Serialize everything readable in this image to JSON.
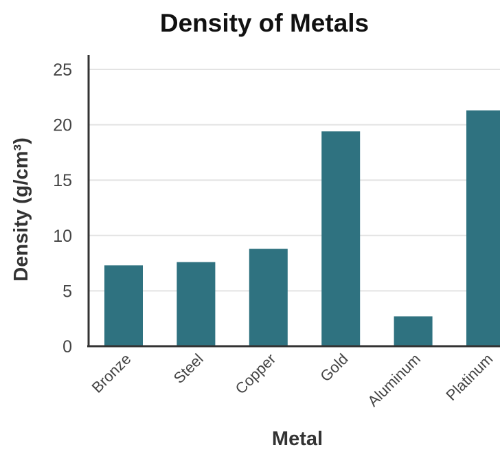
{
  "chart_data": {
    "type": "bar",
    "title": "Density of Metals",
    "xlabel": "Metal",
    "ylabel": "Density (g/cm³)",
    "categories": [
      "Bronze",
      "Steel",
      "Copper",
      "Gold",
      "Aluminum",
      "Platinum"
    ],
    "values": [
      7.3,
      7.6,
      8.8,
      19.4,
      2.7,
      21.3
    ],
    "ylim": [
      0,
      25
    ],
    "yticks": [
      0,
      5,
      10,
      15,
      20,
      25
    ],
    "grid": true,
    "legend": "none",
    "bar_color": "#2f7280"
  }
}
